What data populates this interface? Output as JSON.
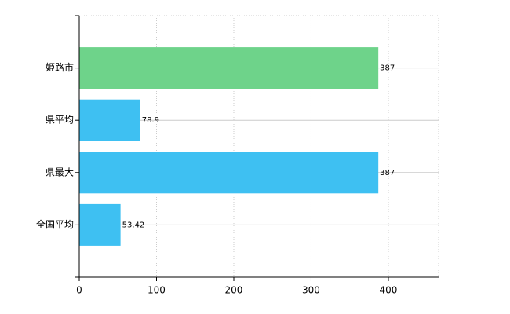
{
  "chart_data": {
    "type": "bar",
    "orientation": "horizontal",
    "categories": [
      "姫路市",
      "県平均",
      "県最大",
      "全国平均"
    ],
    "values": [
      387,
      78.9,
      387,
      53.42
    ],
    "colors": [
      "#6ed38a",
      "#3ec0f2",
      "#3ec0f2",
      "#3ec0f2"
    ],
    "xlim": [
      0,
      465
    ],
    "xticks": [
      0,
      100,
      200,
      300,
      400
    ],
    "grid": true
  }
}
